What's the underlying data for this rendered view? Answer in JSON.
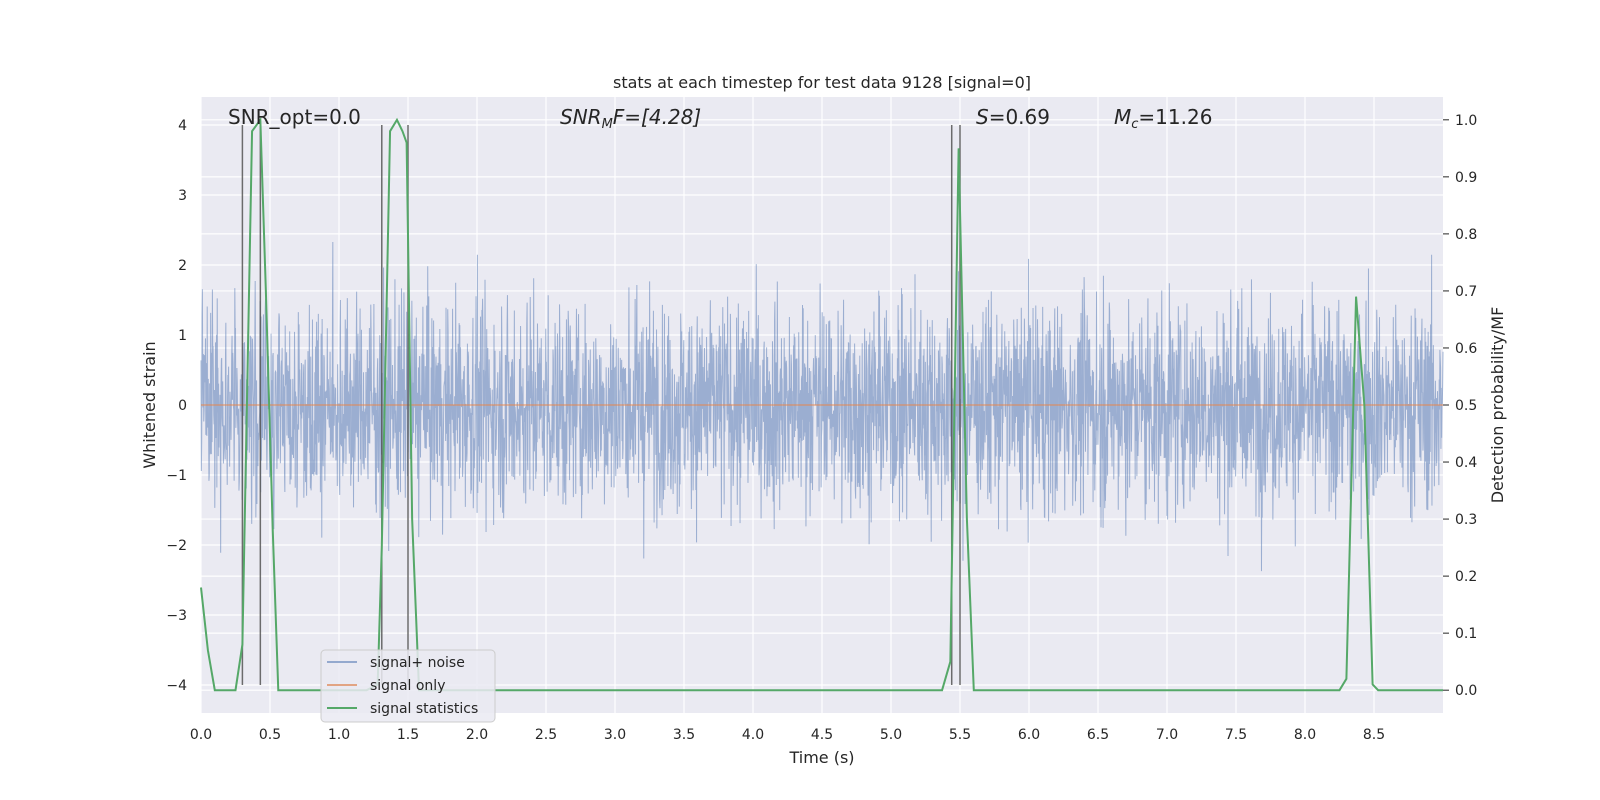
{
  "chart_data": {
    "type": "line",
    "title": "stats at each timestep for test data 9128 [signal=0]",
    "xlabel": "Time (s)",
    "ylabel_left": "Whitened strain",
    "ylabel_right": "Detection probability/MF",
    "xlim": [
      0.0,
      9.0
    ],
    "ylim_left": [
      -4.4,
      4.4
    ],
    "ylim_right": [
      -0.04,
      1.04
    ],
    "x_ticks": [
      "0.0",
      "0.5",
      "1.0",
      "1.5",
      "2.0",
      "2.5",
      "3.0",
      "3.5",
      "4.0",
      "4.5",
      "5.0",
      "5.5",
      "6.0",
      "6.5",
      "7.0",
      "7.5",
      "8.0",
      "8.5"
    ],
    "y_left_ticks": [
      "4",
      "3",
      "2",
      "1",
      "0",
      "−1",
      "−2",
      "−3",
      "−4"
    ],
    "y_right_ticks": [
      "1.0",
      "0.9",
      "0.8",
      "0.7",
      "0.6",
      "0.5",
      "0.4",
      "0.3",
      "0.2",
      "0.1",
      "0.0"
    ],
    "grid": true,
    "legend_position": "lower-left",
    "annotations": {
      "snr_opt": "SNR_opt=0.0",
      "snr_mf_main": "SNR",
      "snr_mf_sub": "M",
      "snr_mf_tail": "F=[4.28]",
      "s_main": "S",
      "s_tail": "=0.69",
      "mc_main": "M",
      "mc_sub": "c",
      "mc_tail": "=11.26"
    },
    "series": [
      {
        "name": "signal+ noise",
        "color": "#4c72b0",
        "kind": "noise-strain",
        "typical_range": [
          -1.6,
          1.6
        ],
        "peak_range": [
          -3.6,
          3.4
        ]
      },
      {
        "name": "signal only",
        "color": "#dd8452",
        "kind": "flat",
        "value": 0.0
      },
      {
        "name": "signal statistics",
        "color": "#55a868",
        "axis": "right",
        "x": [
          0.0,
          0.05,
          0.1,
          0.25,
          0.3,
          0.37,
          0.43,
          0.47,
          0.52,
          0.56,
          1.2,
          1.28,
          1.31,
          1.37,
          1.42,
          1.46,
          1.49,
          1.53,
          1.58,
          5.37,
          5.43,
          5.49,
          5.55,
          5.6,
          8.25,
          8.3,
          8.37,
          8.43,
          8.49,
          8.53,
          9.0
        ],
        "y": [
          0.18,
          0.07,
          0.0,
          0.0,
          0.08,
          0.98,
          1.0,
          0.7,
          0.28,
          0.0,
          0.0,
          0.01,
          0.25,
          0.98,
          1.0,
          0.98,
          0.96,
          0.3,
          0.0,
          0.0,
          0.05,
          0.95,
          0.3,
          0.0,
          0.0,
          0.02,
          0.69,
          0.5,
          0.01,
          0.0,
          0.0
        ]
      }
    ],
    "vertical_markers_x": [
      0.3,
      0.43,
      1.31,
      1.5,
      5.44,
      5.5
    ]
  }
}
